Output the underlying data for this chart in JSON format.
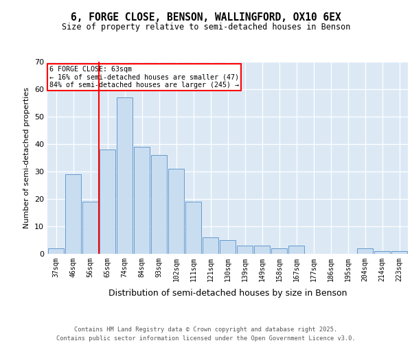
{
  "title_line1": "6, FORGE CLOSE, BENSON, WALLINGFORD, OX10 6EX",
  "title_line2": "Size of property relative to semi-detached houses in Benson",
  "categories": [
    "37sqm",
    "46sqm",
    "56sqm",
    "65sqm",
    "74sqm",
    "84sqm",
    "93sqm",
    "102sqm",
    "111sqm",
    "121sqm",
    "130sqm",
    "139sqm",
    "149sqm",
    "158sqm",
    "167sqm",
    "177sqm",
    "186sqm",
    "195sqm",
    "204sqm",
    "214sqm",
    "223sqm"
  ],
  "values": [
    2,
    29,
    19,
    38,
    57,
    39,
    36,
    31,
    19,
    6,
    5,
    3,
    3,
    2,
    3,
    0,
    0,
    0,
    2,
    1,
    1
  ],
  "bar_color": "#c9ddf0",
  "bar_edge_color": "#6699cc",
  "vline_x": 2.5,
  "highlight_label": "6 FORGE CLOSE: 63sqm",
  "highlight_smaller": "← 16% of semi-detached houses are smaller (47)",
  "highlight_larger": "84% of semi-detached houses are larger (245) →",
  "ylabel": "Number of semi-detached properties",
  "xlabel": "Distribution of semi-detached houses by size in Benson",
  "ylim": [
    0,
    70
  ],
  "yticks": [
    0,
    10,
    20,
    30,
    40,
    50,
    60,
    70
  ],
  "footer_line1": "Contains HM Land Registry data © Crown copyright and database right 2025.",
  "footer_line2": "Contains public sector information licensed under the Open Government Licence v3.0.",
  "bg_color": "#ffffff",
  "plot_bg_color": "#dce9f5"
}
